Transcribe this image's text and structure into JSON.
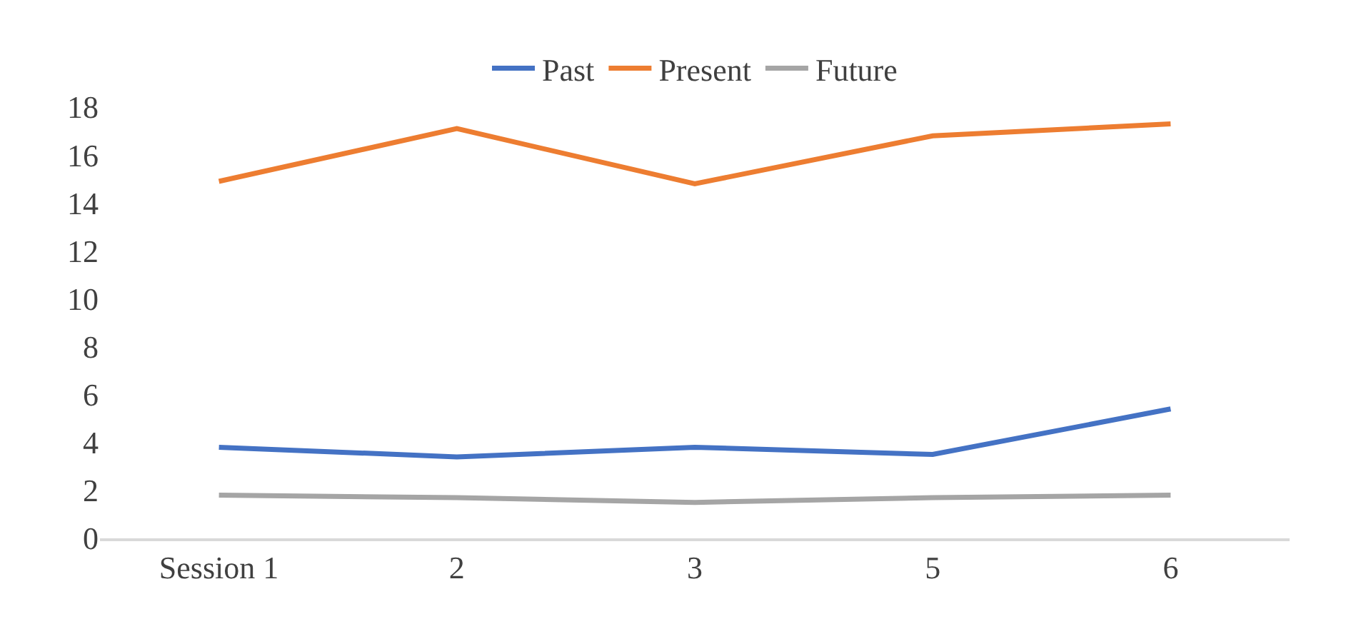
{
  "chart_data": {
    "type": "line",
    "categories": [
      "Session 1",
      "2",
      "3",
      "5",
      "6"
    ],
    "series": [
      {
        "name": "Past",
        "color": "#4472c4",
        "values": [
          3.8,
          3.4,
          3.8,
          3.5,
          5.4
        ]
      },
      {
        "name": "Present",
        "color": "#ed7d31",
        "values": [
          14.9,
          17.1,
          14.8,
          16.8,
          17.3
        ]
      },
      {
        "name": "Future",
        "color": "#a5a5a5",
        "values": [
          1.8,
          1.7,
          1.5,
          1.7,
          1.8
        ]
      }
    ],
    "ylim": [
      0,
      18
    ],
    "yticks": [
      0,
      2,
      4,
      6,
      8,
      10,
      12,
      14,
      16,
      18
    ],
    "grid": false,
    "legend": "top",
    "marker": "none",
    "line_style": "solid"
  }
}
